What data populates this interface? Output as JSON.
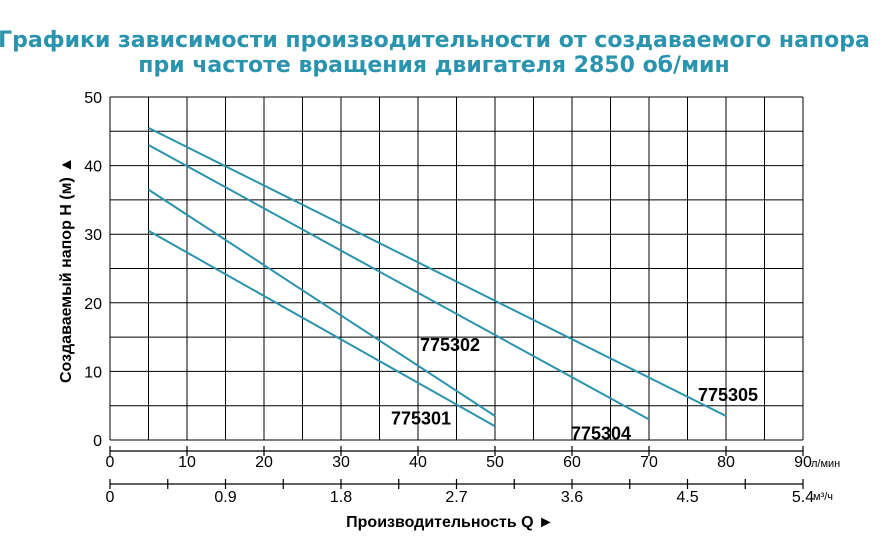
{
  "chart_data": {
    "type": "line",
    "title": "Графики зависимости производительности от создаваемого напора",
    "subtitle": "при частоте вращения двигателя 2850 об/мин",
    "ylabel": "Создаваемый напор Н (м) ▲",
    "xlabel": "Производительность Q ►",
    "x_unit": "л/мин",
    "x2_unit": "м³/ч",
    "ylim": [
      0,
      50
    ],
    "xlim": [
      0,
      90
    ],
    "yticks": [
      "0",
      "10",
      "20",
      "30",
      "40",
      "50"
    ],
    "xticks": [
      "0",
      "10",
      "20",
      "30",
      "40",
      "50",
      "60",
      "70",
      "80",
      "90"
    ],
    "x2ticks": [
      "0",
      "0.9",
      "1.8",
      "2.7",
      "3.6",
      "4.5",
      "5.4"
    ],
    "grid": true,
    "colors": {
      "line": "#2a93ad",
      "title": "#2a93ad",
      "grid": "#000000"
    },
    "series": [
      {
        "name": "775301",
        "x": [
          5,
          50
        ],
        "y": [
          30.5,
          2
        ]
      },
      {
        "name": "775302",
        "x": [
          5,
          50
        ],
        "y": [
          36.5,
          3.5
        ]
      },
      {
        "name": "775304",
        "x": [
          5,
          70
        ],
        "y": [
          43,
          3
        ]
      },
      {
        "name": "775305",
        "x": [
          5,
          80
        ],
        "y": [
          45.5,
          3.5
        ]
      }
    ]
  }
}
